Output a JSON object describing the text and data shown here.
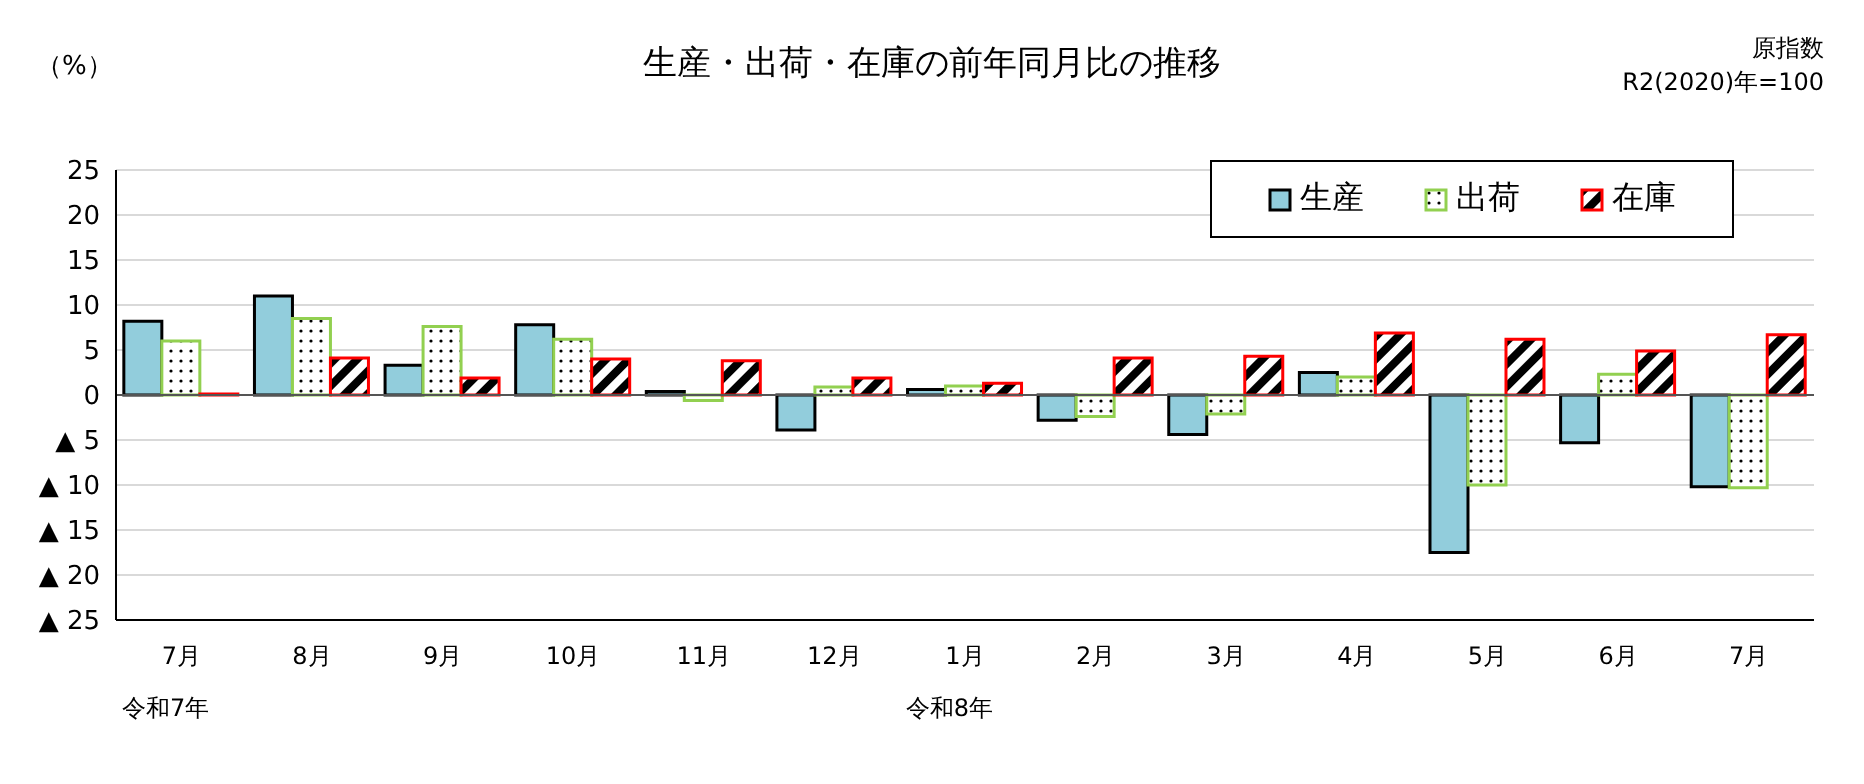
{
  "chart_data": {
    "type": "bar",
    "title": "生産・出荷・在庫の前年同月比の推移",
    "ylabel": "（%）",
    "annotations": [
      "原指数",
      "R2(2020)年=100",
      "令和7年",
      "令和8年"
    ],
    "categories": [
      "7月",
      "8月",
      "9月",
      "10月",
      "11月",
      "12月",
      "1月",
      "2月",
      "3月",
      "4月",
      "5月",
      "6月",
      "7月"
    ],
    "series": [
      {
        "name": "生産",
        "color": "#92cddc",
        "values": [
          8.2,
          11,
          3.3,
          7.8,
          0.4,
          -3.9,
          0.6,
          -2.8,
          -4.4,
          2.5,
          -17.5,
          -5.3,
          -10.2
        ]
      },
      {
        "name": "出荷",
        "color": "#92d050",
        "values": [
          6.0,
          8.5,
          7.6,
          6.2,
          -0.6,
          0.9,
          1.0,
          -2.4,
          -2.1,
          2.0,
          -10.0,
          2.3,
          -10.3
        ]
      },
      {
        "name": "在庫",
        "color": "#ff0000",
        "values": [
          0.1,
          4.1,
          1.9,
          4.0,
          3.8,
          1.9,
          1.3,
          4.1,
          4.3,
          6.9,
          6.2,
          4.9,
          6.7
        ]
      }
    ],
    "ylim": [
      -25,
      25
    ],
    "yticks": [
      {
        "value": -25,
        "label": "▲ 25"
      },
      {
        "value": -20,
        "label": "▲ 20"
      },
      {
        "value": -15,
        "label": "▲ 15"
      },
      {
        "value": -10,
        "label": "▲ 10"
      },
      {
        "value": -5,
        "label": "▲ 5"
      },
      0,
      5,
      10,
      15,
      20,
      25
    ],
    "grid": "y",
    "legend": "top right"
  }
}
